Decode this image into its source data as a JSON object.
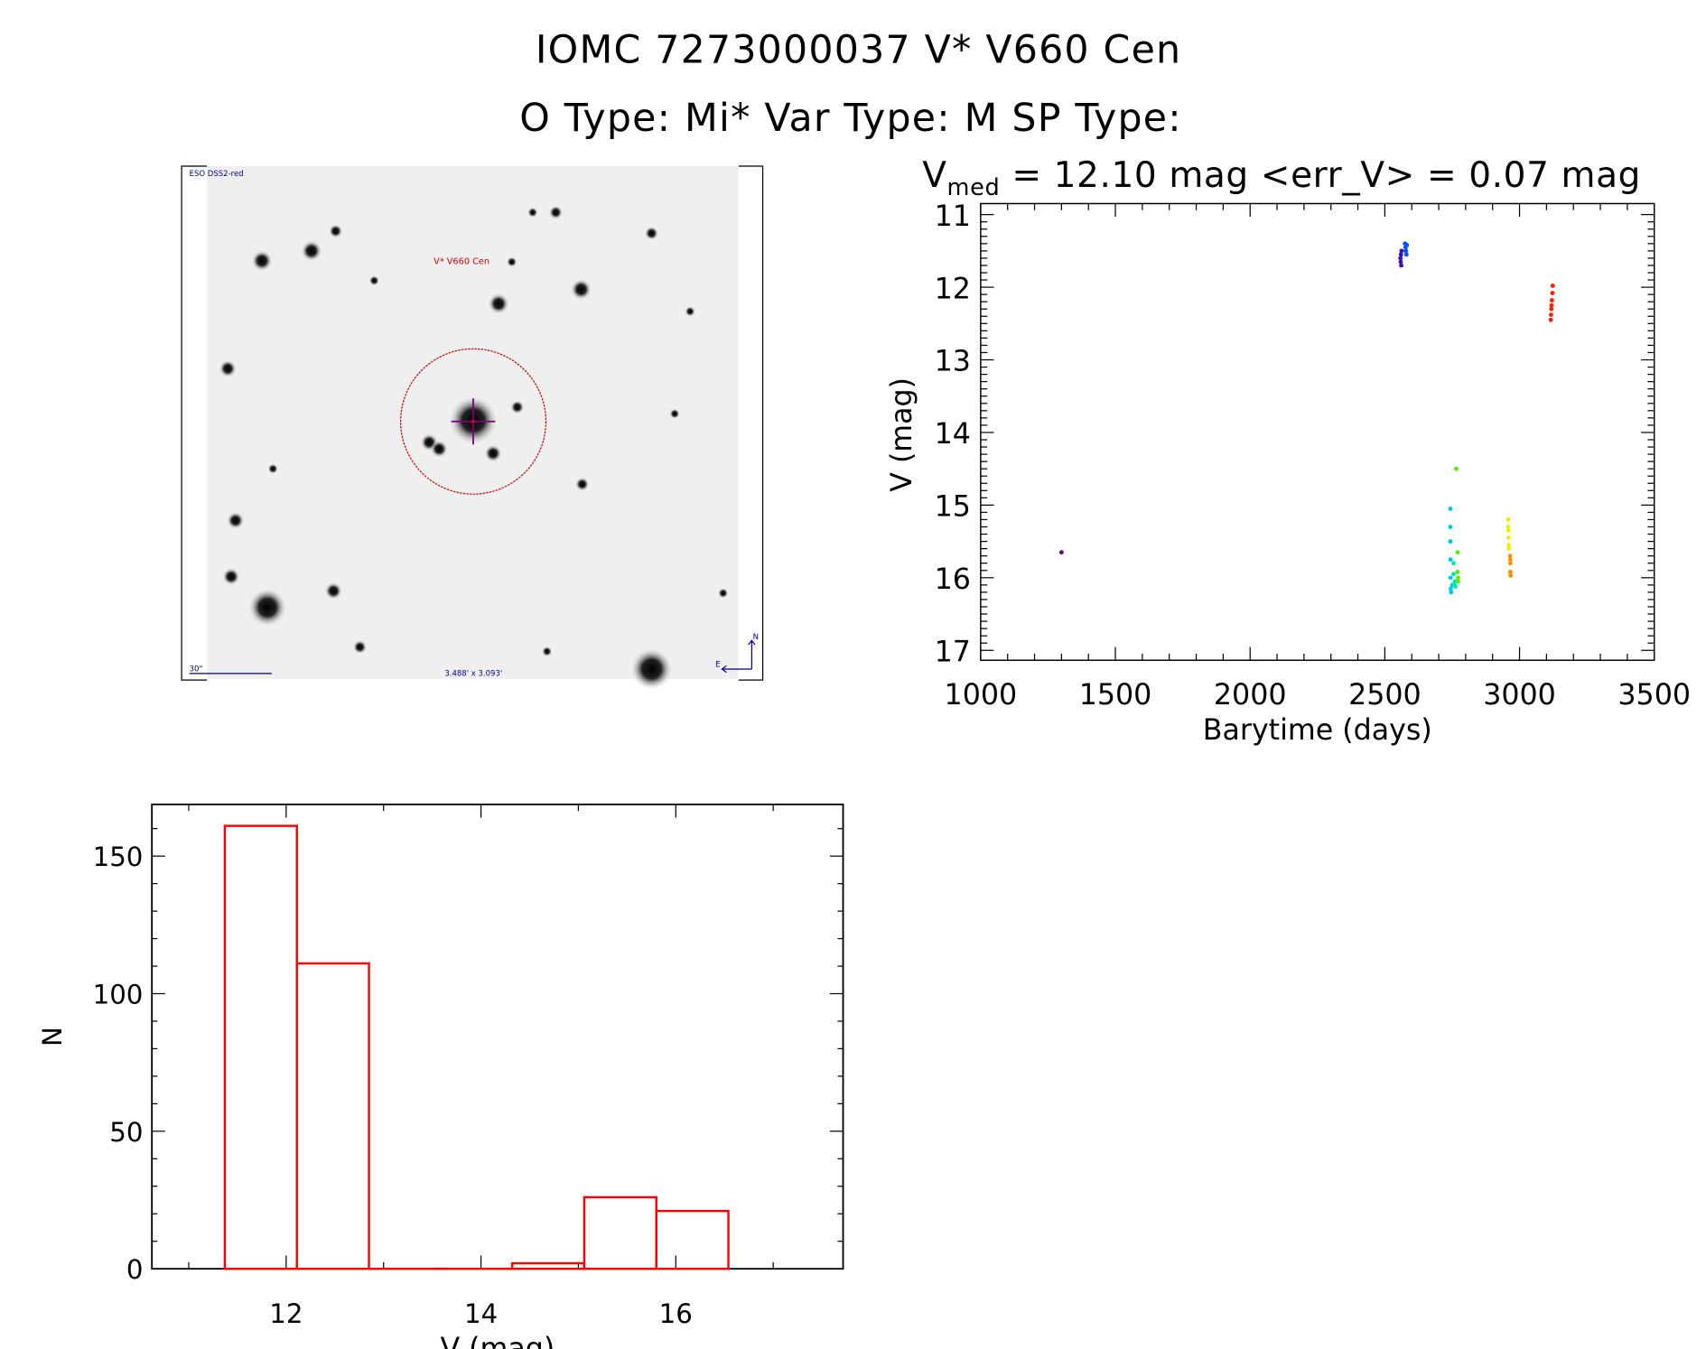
{
  "header": {
    "title": "IOMC 7273000037    V* V660 Cen",
    "subtitle": "O Type: Mi*   Var Type: M   SP Type:"
  },
  "image_panel": {
    "survey_label": "ESO DSS2-red",
    "target_label": "V* V660 Cen",
    "scale_label": "30\"",
    "fov_label": "3.488' x 3.093'",
    "north_label": "N",
    "east_label": "E"
  },
  "colors": {
    "histogram": "#ff0000",
    "circle": "#c00000",
    "crosshair": "#800080",
    "annotation": "#00008b"
  },
  "chart_data": [
    {
      "type": "scatter",
      "title_main": "V",
      "title_sub": "med",
      "title_rest": " = 12.10 mag <err_V> = 0.07 mag",
      "xlabel": "Barytime (days)",
      "ylabel": "V (mag)",
      "xlim": [
        1000,
        3500
      ],
      "ylim": [
        17,
        11
      ],
      "xticks": [
        "1000",
        "1500",
        "2000",
        "2500",
        "3000",
        "3500"
      ],
      "yticks": [
        "11",
        "12",
        "13",
        "14",
        "15",
        "16",
        "17"
      ],
      "series": [
        {
          "color": "#5a0a7a",
          "points": [
            [
              1300,
              15.65
            ]
          ]
        },
        {
          "color": "#3a10c0",
          "points": [
            [
              2558,
              11.6
            ],
            [
              2559,
              11.65
            ],
            [
              2560,
              11.55
            ],
            [
              2561,
              11.7
            ],
            [
              2562,
              11.5
            ]
          ]
        },
        {
          "color": "#0050ff",
          "points": [
            [
              2575,
              11.4
            ],
            [
              2577,
              11.45
            ],
            [
              2578,
              11.5
            ],
            [
              2580,
              11.55
            ],
            [
              2582,
              11.42
            ]
          ]
        },
        {
          "color": "#00c8f0",
          "points": [
            [
              2743,
              15.05
            ],
            [
              2743,
              15.3
            ],
            [
              2743,
              15.5
            ],
            [
              2744,
              15.75
            ],
            [
              2744,
              16.0
            ],
            [
              2745,
              16.15
            ],
            [
              2746,
              16.2
            ],
            [
              2750,
              16.1
            ]
          ]
        },
        {
          "color": "#00e8b0",
          "points": [
            [
              2755,
              15.8
            ],
            [
              2755,
              15.95
            ],
            [
              2758,
              16.1
            ],
            [
              2760,
              16.05
            ],
            [
              2762,
              16.12
            ]
          ]
        },
        {
          "color": "#50f000",
          "points": [
            [
              2765,
              14.5
            ],
            [
              2770,
              15.65
            ],
            [
              2770,
              15.92
            ],
            [
              2772,
              16.0
            ],
            [
              2772,
              16.05
            ]
          ]
        },
        {
          "color": "#f0f000",
          "points": [
            [
              2958,
              15.2
            ],
            [
              2958,
              15.3
            ],
            [
              2959,
              15.35
            ],
            [
              2959,
              15.45
            ],
            [
              2960,
              15.55
            ],
            [
              2960,
              15.6
            ]
          ]
        },
        {
          "color": "#ff9000",
          "points": [
            [
              2965,
              15.7
            ],
            [
              2965,
              15.75
            ],
            [
              2966,
              15.8
            ],
            [
              2966,
              15.92
            ],
            [
              2967,
              15.97
            ]
          ]
        },
        {
          "color": "#ff2000",
          "points": [
            [
              3123,
              11.98
            ],
            [
              3122,
              12.08
            ],
            [
              3120,
              12.18
            ],
            [
              3119,
              12.25
            ],
            [
              3118,
              12.3
            ],
            [
              3117,
              12.38
            ],
            [
              3116,
              12.45
            ]
          ]
        }
      ]
    },
    {
      "type": "bar",
      "xlabel": "V (mag)",
      "ylabel": "N",
      "xlim": [
        10.62,
        17.72
      ],
      "ylim": [
        0,
        168
      ],
      "xticks": [
        "12",
        "14",
        "16"
      ],
      "yticks": [
        "0",
        "50",
        "100",
        "150"
      ],
      "bin_edges": [
        11.37,
        12.11,
        12.85,
        13.58,
        14.32,
        15.06,
        15.8,
        16.54
      ],
      "values": [
        161,
        111,
        0,
        0,
        2,
        26,
        21
      ]
    }
  ]
}
